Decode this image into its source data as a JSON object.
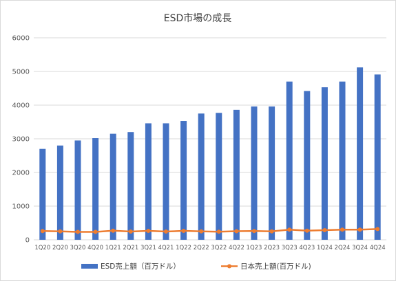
{
  "chart_data": {
    "type": "bar",
    "title": "ESD市場の成長",
    "categories": [
      "1Q20",
      "2Q20",
      "3Q20",
      "4Q20",
      "1Q21",
      "2Q21",
      "3Q21",
      "4Q21",
      "1Q22",
      "2Q22",
      "3Q22",
      "4Q22",
      "1Q23",
      "2Q23",
      "3Q23",
      "4Q23",
      "1Q24",
      "2Q24",
      "3Q24",
      "4Q24"
    ],
    "series": [
      {
        "name": "ESD売上額（百万ドル）",
        "type": "bar",
        "color": "#4472C4",
        "values": [
          2700,
          2800,
          2950,
          3020,
          3150,
          3200,
          3460,
          3460,
          3530,
          3750,
          3770,
          3860,
          3960,
          3960,
          4700,
          4420,
          4530,
          4700,
          5120,
          4910
        ]
      },
      {
        "name": "日本売上額(百万ドル)",
        "type": "line",
        "color": "#ED7D31",
        "values": [
          260,
          250,
          235,
          235,
          270,
          245,
          265,
          245,
          265,
          250,
          240,
          255,
          260,
          250,
          300,
          270,
          285,
          300,
          300,
          320
        ]
      }
    ],
    "yticks": [
      0,
      1000,
      2000,
      3000,
      4000,
      5000,
      6000
    ],
    "ylim": [
      0,
      6000
    ],
    "grid": true,
    "legend_position": "bottom"
  }
}
